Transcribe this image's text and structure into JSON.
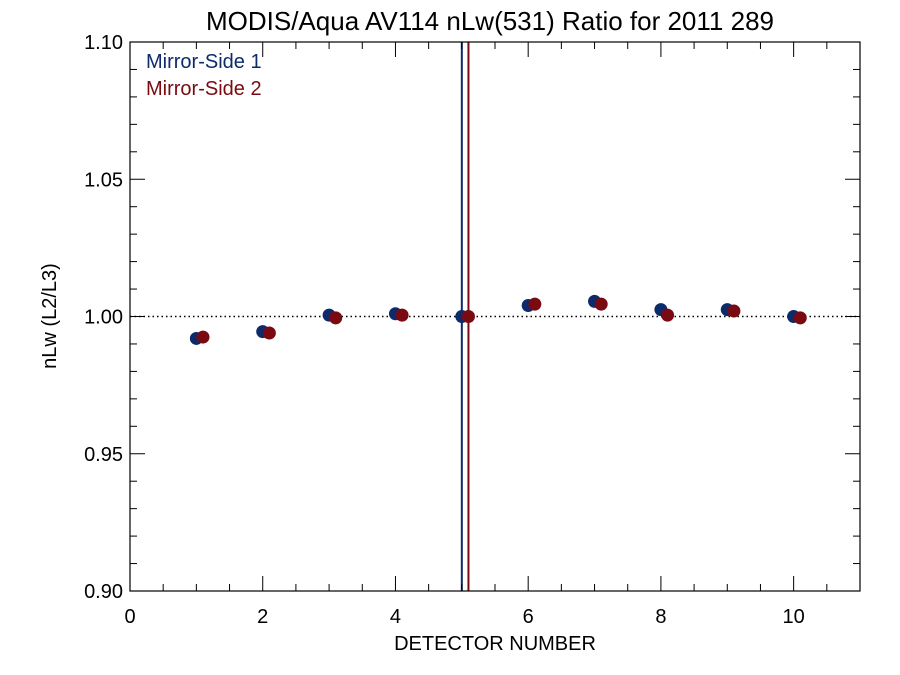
{
  "chart_data": {
    "type": "scatter",
    "title": "MODIS/Aqua AV114 nLw(531) Ratio for 2011 289",
    "xlabel": "DETECTOR NUMBER",
    "ylabel": "nLw (L2/L3)",
    "xlim": [
      0,
      11
    ],
    "ylim": [
      0.9,
      1.1
    ],
    "xticks": [
      0,
      2,
      4,
      6,
      8,
      10
    ],
    "xtick_labels": [
      "0",
      "2",
      "4",
      "6",
      "8",
      "10"
    ],
    "yticks": [
      0.9,
      0.95,
      1.0,
      1.05,
      1.1
    ],
    "ytick_labels": [
      "0.90",
      "0.95",
      "1.00",
      "1.05",
      "1.10"
    ],
    "x_minor_step": 0.5,
    "y_minor_step": 0.01,
    "reference_line": {
      "y": 1.0,
      "style": "dotted"
    },
    "vertical_lines": [
      {
        "x": 5.0,
        "color": "#0d2a6b"
      },
      {
        "x": 5.1,
        "color": "#7a0a12"
      }
    ],
    "legend_position": "top-left",
    "series": [
      {
        "name": "Mirror-Side 1",
        "color": "#0d2a6b",
        "x": [
          1,
          2,
          3,
          4,
          5,
          6,
          7,
          8,
          9,
          10
        ],
        "y": [
          0.992,
          0.9945,
          1.0005,
          1.001,
          1.0,
          1.004,
          1.0055,
          1.0025,
          1.0025,
          1.0
        ]
      },
      {
        "name": "Mirror-Side 2",
        "color": "#7a0a12",
        "x": [
          1.1,
          2.1,
          3.1,
          4.1,
          5.1,
          6.1,
          7.1,
          8.1,
          9.1,
          10.1
        ],
        "y": [
          0.9925,
          0.994,
          0.9995,
          1.0005,
          1.0,
          1.0045,
          1.0045,
          1.0005,
          1.002,
          0.9995
        ]
      }
    ]
  }
}
